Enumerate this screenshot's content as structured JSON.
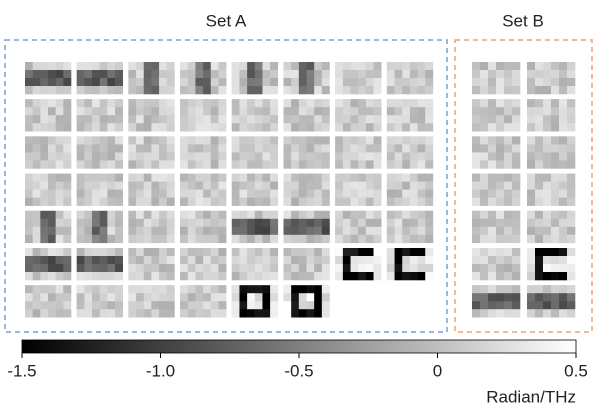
{
  "panels": [
    {
      "title": "Set A"
    },
    {
      "title": "Set B"
    }
  ],
  "colorbar": {
    "lim": [
      -1.5,
      0.5
    ],
    "ticks": [
      -1.5,
      {
        "value": -1.0,
        "label": "-1.0"
      },
      -0.5,
      0,
      0.5
    ],
    "label": "Radian/THz"
  }
}
